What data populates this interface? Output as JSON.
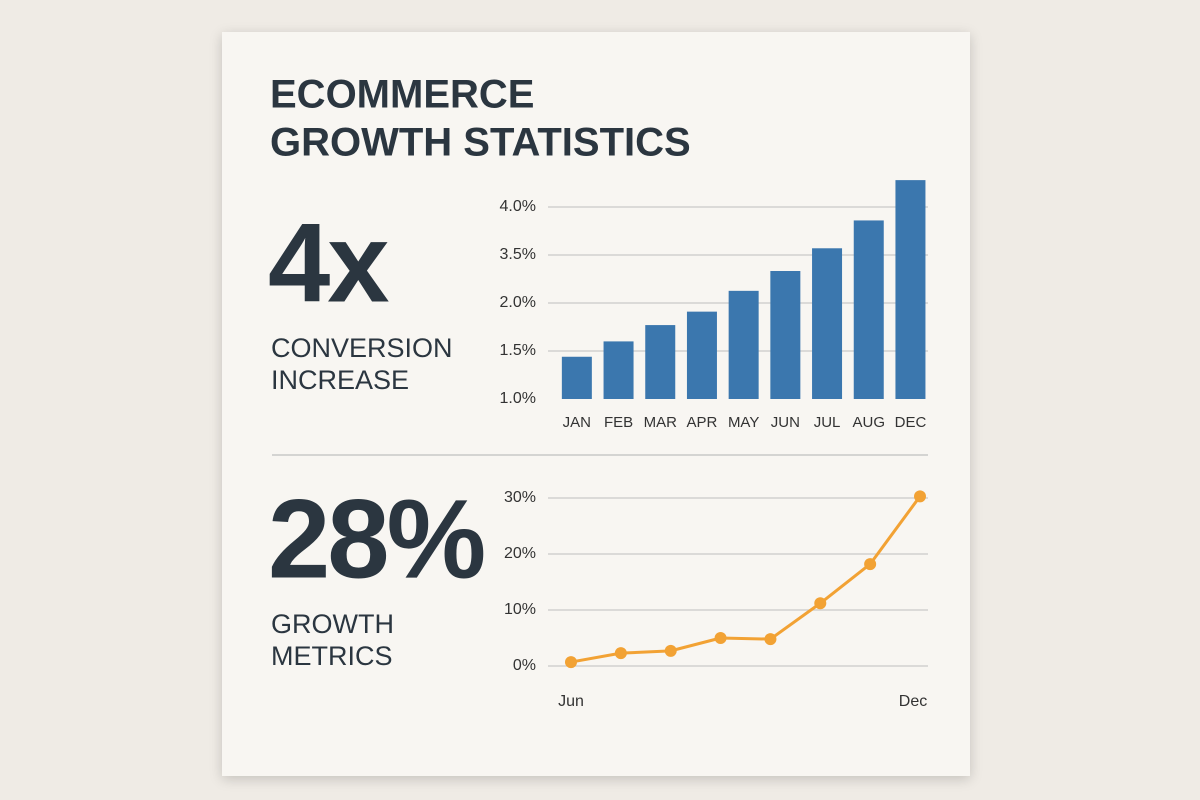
{
  "header": {
    "title": [
      "ECOMMERCE",
      "GROWTH STATISTICS"
    ]
  },
  "stats": [
    {
      "value": "4x",
      "label": [
        "CONVERSION",
        "INCREASE"
      ]
    },
    {
      "value": "28%",
      "label": [
        "GROWTH",
        "METRICS"
      ]
    }
  ],
  "chart_data": [
    {
      "type": "bar",
      "color": "#3b77ae",
      "categories": [
        "JAN",
        "FEB",
        "MAR",
        "APR",
        "MAY",
        "JUN",
        "JUL",
        "AUG",
        "DEC"
      ],
      "values": [
        1.44,
        1.6,
        1.77,
        1.91,
        2.38,
        3.0,
        3.57,
        3.86,
        4.28
      ],
      "ylim": [
        1.0,
        4.3
      ],
      "yticks": [
        {
          "value": 1.0,
          "label": "1.0%"
        },
        {
          "value": 1.5,
          "label": "1.5%"
        },
        {
          "value": 2.0,
          "label": "2.0%"
        },
        {
          "value": 3.5,
          "label": "3.5%"
        },
        {
          "value": 4.0,
          "label": "4.0%"
        }
      ],
      "grid": true
    },
    {
      "type": "line",
      "color": "#f2a234",
      "categories": [
        "Jun",
        null,
        null,
        null,
        null,
        null,
        null,
        "Dec"
      ],
      "values": [
        0.7,
        2.3,
        2.7,
        5.0,
        4.8,
        11.2,
        18.2,
        30.3
      ],
      "ylim": [
        0,
        30.5
      ],
      "yticks": [
        {
          "value": 0,
          "label": "0%"
        },
        {
          "value": 10,
          "label": "10%"
        },
        {
          "value": 20,
          "label": "20%"
        },
        {
          "value": 30,
          "label": "30%"
        }
      ],
      "grid": true
    }
  ]
}
